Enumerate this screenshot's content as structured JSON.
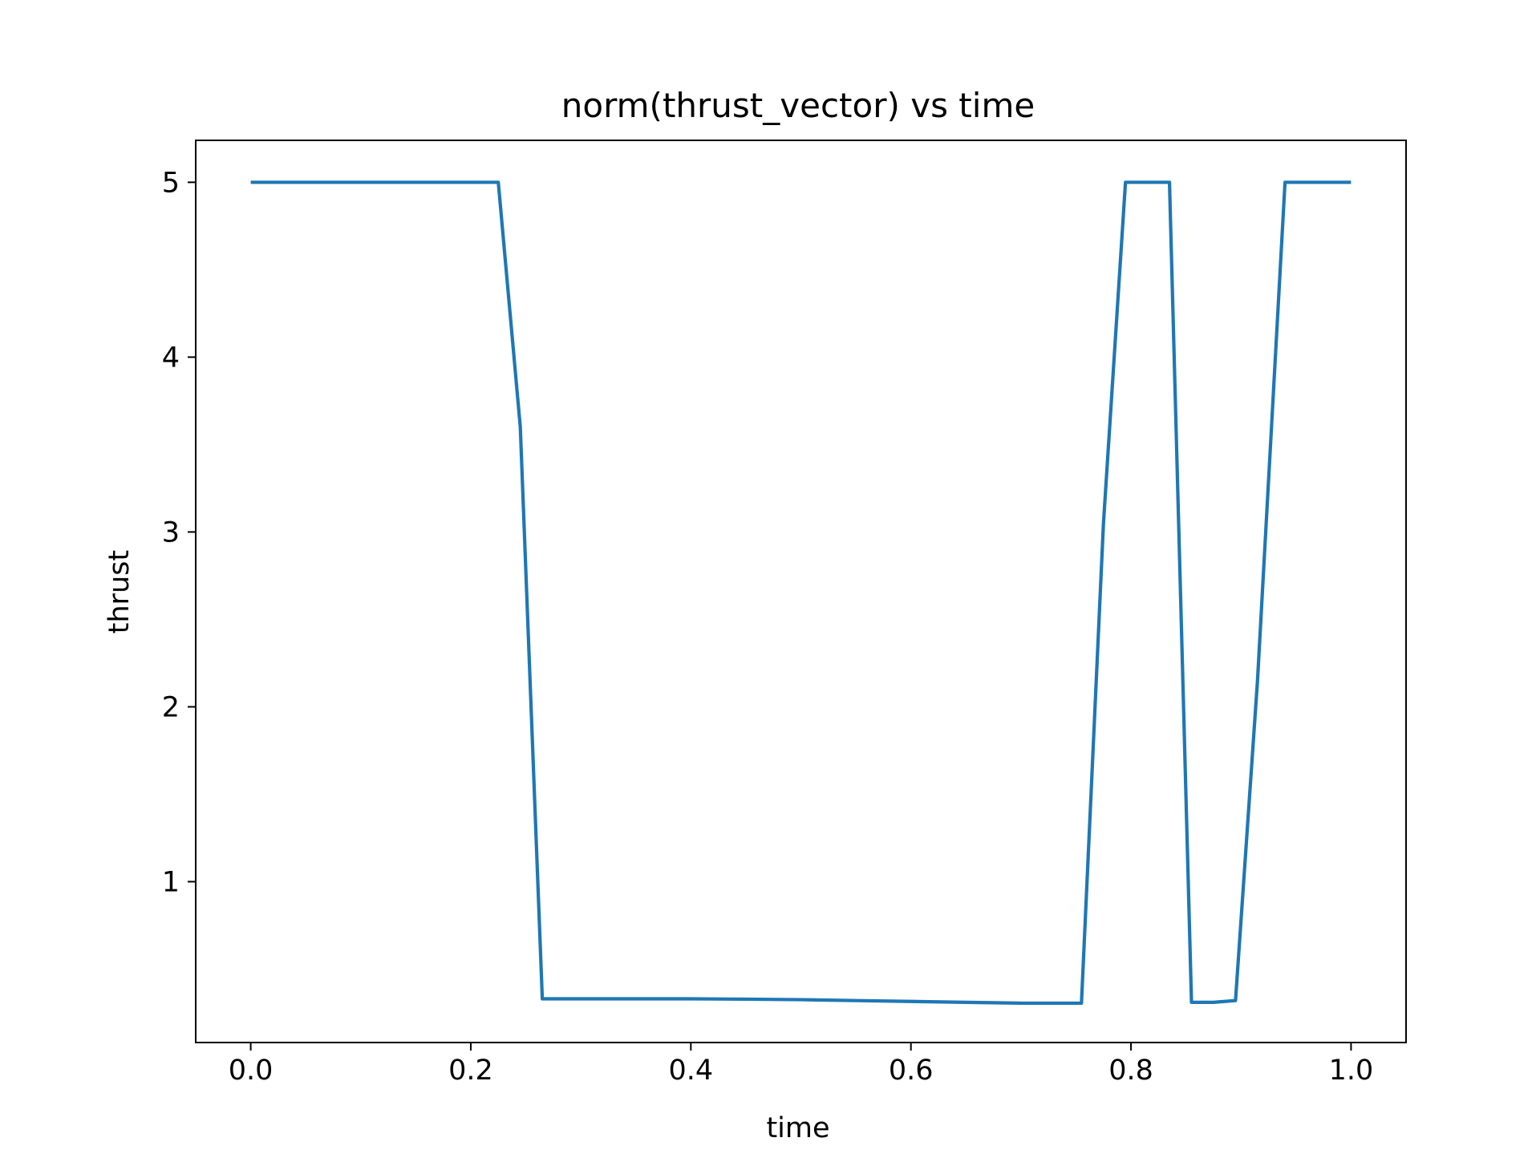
{
  "chart_data": {
    "type": "line",
    "title": "norm(thrust_vector) vs time",
    "xlabel": "time",
    "ylabel": "thrust",
    "xlim": [
      -0.05,
      1.05
    ],
    "ylim": [
      0.08,
      5.24
    ],
    "x_ticks": [
      "0.0",
      "0.2",
      "0.4",
      "0.6",
      "0.8",
      "1.0"
    ],
    "x_tick_values": [
      0.0,
      0.2,
      0.4,
      0.6,
      0.8,
      1.0
    ],
    "y_ticks": [
      "1",
      "2",
      "3",
      "4",
      "5"
    ],
    "y_tick_values": [
      1,
      2,
      3,
      4,
      5
    ],
    "grid": false,
    "legend": "none",
    "series": [
      {
        "color": "#1f77b4",
        "x": [
          0.0,
          0.02,
          0.04,
          0.06,
          0.08,
          0.1,
          0.12,
          0.14,
          0.16,
          0.18,
          0.2,
          0.225,
          0.245,
          0.265,
          0.285,
          0.3,
          0.35,
          0.4,
          0.45,
          0.5,
          0.55,
          0.6,
          0.65,
          0.7,
          0.72,
          0.755,
          0.775,
          0.795,
          0.815,
          0.835,
          0.855,
          0.875,
          0.895,
          0.915,
          0.94,
          0.96,
          0.98,
          1.0
        ],
        "y": [
          5.0,
          5.0,
          5.0,
          5.0,
          5.0,
          5.0,
          5.0,
          5.0,
          5.0,
          5.0,
          5.0,
          5.0,
          3.6,
          0.33,
          0.33,
          0.33,
          0.33,
          0.33,
          0.328,
          0.325,
          0.32,
          0.315,
          0.31,
          0.305,
          0.305,
          0.305,
          3.05,
          5.0,
          5.0,
          5.0,
          0.31,
          0.31,
          0.32,
          2.15,
          5.0,
          5.0,
          5.0,
          5.0
        ]
      }
    ]
  }
}
